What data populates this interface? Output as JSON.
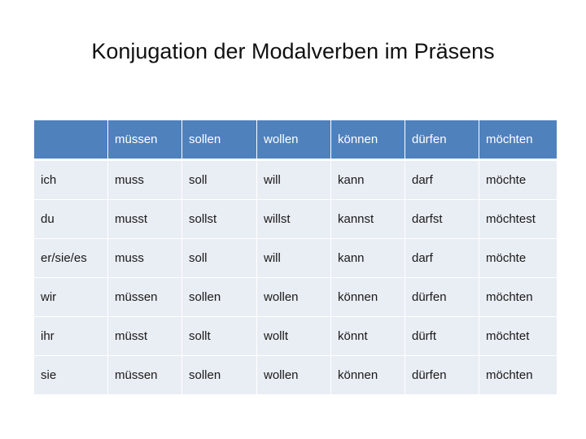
{
  "title": "Konjugation der Modalverben im Präsens",
  "table": {
    "headers": [
      "",
      "müssen",
      "sollen",
      "wollen",
      "können",
      "dürfen",
      "möchten"
    ],
    "rows": [
      [
        "ich",
        "muss",
        "soll",
        "will",
        "kann",
        "darf",
        "möchte"
      ],
      [
        "du",
        "musst",
        "sollst",
        "willst",
        "kannst",
        "darfst",
        "möchtest"
      ],
      [
        "er/sie/es",
        "muss",
        "soll",
        "will",
        "kann",
        "darf",
        "möchte"
      ],
      [
        "wir",
        "müssen",
        "sollen",
        "wollen",
        "können",
        "dürfen",
        "möchten"
      ],
      [
        "ihr",
        "müsst",
        "sollt",
        "wollt",
        "könnt",
        "dürft",
        "möchtet"
      ],
      [
        "sie",
        "müssen",
        "sollen",
        "wollen",
        "können",
        "dürfen",
        "möchten"
      ]
    ]
  },
  "colors": {
    "header_bg": "#4f81bd",
    "header_text": "#ffffff",
    "cell_bg": "#e9edf4"
  }
}
